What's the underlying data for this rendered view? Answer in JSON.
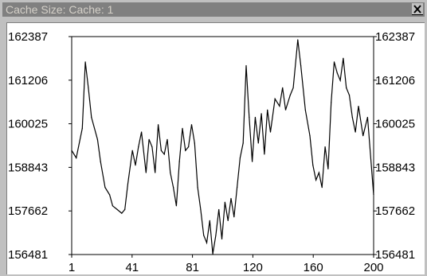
{
  "window": {
    "title": "Cache Size: Cache: 1",
    "close_icon": "close-icon"
  },
  "chart_data": {
    "type": "line",
    "title": "",
    "xlabel": "",
    "ylabel": "",
    "xlim": [
      1,
      200
    ],
    "ylim": [
      156481,
      162387
    ],
    "xticks": [
      "1",
      "41",
      "81",
      "120",
      "160",
      "200"
    ],
    "yticks_left": [
      "162387",
      "161206",
      "160025",
      "158843",
      "157662",
      "156481"
    ],
    "yticks_right": [
      "162387",
      "161206",
      "160025",
      "158843",
      "157662",
      "156481"
    ],
    "grid": false,
    "legend": "none",
    "line_color": "#000000",
    "series": [
      {
        "x": [
          1,
          4,
          8,
          10,
          12,
          14,
          18,
          20,
          23,
          26,
          28,
          31,
          34,
          36,
          38,
          41,
          43,
          45,
          47,
          50,
          52,
          54,
          56,
          58,
          60,
          62,
          64,
          66,
          68,
          70,
          72,
          74,
          76,
          78,
          80,
          82,
          84,
          86,
          88,
          90,
          92,
          94,
          96,
          98,
          100,
          102,
          104,
          106,
          108,
          110,
          112,
          114,
          116,
          118,
          120,
          122,
          124,
          126,
          128,
          130,
          132,
          135,
          138,
          140,
          142,
          145,
          147,
          150,
          152,
          155,
          158,
          160,
          162,
          164,
          166,
          168,
          170,
          172,
          174,
          176,
          178,
          180,
          182,
          184,
          186,
          188,
          190,
          193,
          196,
          200
        ],
        "values": [
          159300,
          159100,
          159900,
          161700,
          161000,
          160200,
          159600,
          159000,
          158300,
          158100,
          157800,
          157700,
          157600,
          157700,
          158400,
          159300,
          158900,
          159400,
          159800,
          158700,
          159600,
          159400,
          158700,
          160000,
          159300,
          159200,
          159600,
          158700,
          158300,
          157800,
          159000,
          159900,
          159300,
          159400,
          160000,
          159500,
          158300,
          157700,
          157000,
          156800,
          157400,
          156500,
          157000,
          157700,
          156900,
          157900,
          157400,
          158000,
          157500,
          158300,
          159100,
          159500,
          161600,
          160200,
          159000,
          160200,
          159500,
          160300,
          159200,
          160400,
          159800,
          160700,
          160500,
          161000,
          160400,
          160800,
          161000,
          162300,
          161600,
          160400,
          159700,
          158900,
          158500,
          158700,
          158300,
          159400,
          158800,
          160600,
          161700,
          161400,
          161200,
          161800,
          161000,
          160800,
          160200,
          159800,
          160500,
          159700,
          160200,
          158100
        ]
      }
    ]
  }
}
